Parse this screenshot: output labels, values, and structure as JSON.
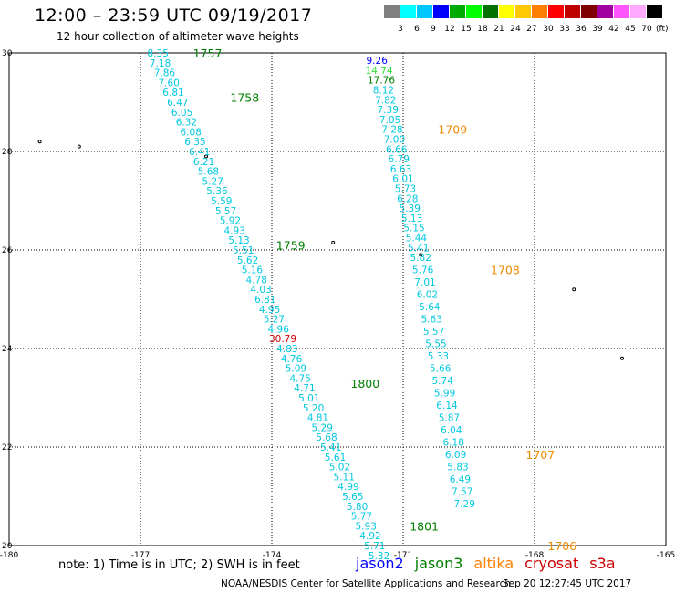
{
  "header": {
    "title": "12:00 – 23:59 UTC 09/19/2017",
    "subtitle": "12 hour collection of altimeter wave heights"
  },
  "legend": {
    "colors": [
      "#808080",
      "#00ffff",
      "#00c8ff",
      "#0000ff",
      "#00aa00",
      "#00ff00",
      "#007000",
      "#ffff00",
      "#ffc800",
      "#ff8000",
      "#ff0000",
      "#c00000",
      "#800000",
      "#a000a0",
      "#ff55ff",
      "#ffaaff",
      "#000000"
    ],
    "labels": [
      "3",
      "6",
      "9",
      "12",
      "15",
      "18",
      "21",
      "24",
      "27",
      "30",
      "33",
      "36",
      "39",
      "42",
      "45",
      "70"
    ],
    "unit": "(ft)"
  },
  "chart_data": {
    "type": "scatter",
    "xlim": [
      -180,
      -165
    ],
    "ylim": [
      20,
      30
    ],
    "x_ticks": [
      "-180",
      "-177",
      "-174",
      "-171",
      "-168",
      "-165"
    ],
    "y_ticks": [
      "30",
      "28",
      "26",
      "24",
      "22",
      "20"
    ],
    "grid": "dotted",
    "track_colors": {
      "cyan": "#00c8e0",
      "blue": "#0000ff",
      "green": "#30e030",
      "darkgreen": "#008000",
      "red": "#cc0000"
    },
    "tracks": [
      {
        "points": [
          {
            "lon": -176.6,
            "lat": 30.0,
            "v": "8.35"
          },
          {
            "lon": -176.55,
            "lat": 29.8,
            "v": "7.18"
          },
          {
            "lon": -176.45,
            "lat": 29.6,
            "v": "7.86"
          },
          {
            "lon": -176.35,
            "lat": 29.4,
            "v": "7.60"
          },
          {
            "lon": -176.25,
            "lat": 29.2,
            "v": "6.81"
          },
          {
            "lon": -176.15,
            "lat": 29.0,
            "v": "6.47"
          },
          {
            "lon": -176.05,
            "lat": 28.8,
            "v": "6.05"
          },
          {
            "lon": -175.95,
            "lat": 28.6,
            "v": "6.32"
          },
          {
            "lon": -175.85,
            "lat": 28.4,
            "v": "6.08"
          },
          {
            "lon": -175.75,
            "lat": 28.2,
            "v": "6.35"
          },
          {
            "lon": -175.65,
            "lat": 28.0,
            "v": "6.41"
          },
          {
            "lon": -175.55,
            "lat": 27.8,
            "v": "6.21"
          },
          {
            "lon": -175.45,
            "lat": 27.6,
            "v": "5.68"
          },
          {
            "lon": -175.35,
            "lat": 27.4,
            "v": "5.27"
          },
          {
            "lon": -175.25,
            "lat": 27.2,
            "v": "5.36"
          },
          {
            "lon": -175.15,
            "lat": 27.0,
            "v": "5.59"
          },
          {
            "lon": -175.05,
            "lat": 26.8,
            "v": "5.57"
          },
          {
            "lon": -174.95,
            "lat": 26.6,
            "v": "5.92"
          },
          {
            "lon": -174.85,
            "lat": 26.4,
            "v": "4.93"
          },
          {
            "lon": -174.75,
            "lat": 26.2,
            "v": "5.13"
          },
          {
            "lon": -174.65,
            "lat": 26.0,
            "v": "5.51"
          },
          {
            "lon": -174.55,
            "lat": 25.8,
            "v": "5.62"
          },
          {
            "lon": -174.45,
            "lat": 25.6,
            "v": "5.16"
          },
          {
            "lon": -174.35,
            "lat": 25.4,
            "v": "4.78"
          },
          {
            "lon": -174.25,
            "lat": 25.2,
            "v": "4.03"
          },
          {
            "lon": -174.15,
            "lat": 25.0,
            "v": "6.81"
          },
          {
            "lon": -174.05,
            "lat": 24.8,
            "v": "4.95"
          },
          {
            "lon": -173.95,
            "lat": 24.6,
            "v": "5.27"
          },
          {
            "lon": -173.85,
            "lat": 24.4,
            "v": "4.96"
          },
          {
            "lon": -173.75,
            "lat": 24.2,
            "v": "30.79",
            "c": "red"
          },
          {
            "lon": -173.65,
            "lat": 24.0,
            "v": "4.83"
          },
          {
            "lon": -173.55,
            "lat": 23.8,
            "v": "4.76"
          },
          {
            "lon": -173.45,
            "lat": 23.6,
            "v": "5.09"
          },
          {
            "lon": -173.35,
            "lat": 23.4,
            "v": "4.75"
          },
          {
            "lon": -173.25,
            "lat": 23.2,
            "v": "4.71"
          },
          {
            "lon": -173.15,
            "lat": 23.0,
            "v": "5.01"
          },
          {
            "lon": -173.05,
            "lat": 22.8,
            "v": "5.20"
          },
          {
            "lon": -172.95,
            "lat": 22.6,
            "v": "4.81"
          },
          {
            "lon": -172.85,
            "lat": 22.4,
            "v": "5.29"
          },
          {
            "lon": -172.75,
            "lat": 22.2,
            "v": "5.68"
          },
          {
            "lon": -172.65,
            "lat": 22.0,
            "v": "5.41"
          },
          {
            "lon": -172.55,
            "lat": 21.8,
            "v": "5.61"
          },
          {
            "lon": -172.45,
            "lat": 21.6,
            "v": "5.02"
          },
          {
            "lon": -172.35,
            "lat": 21.4,
            "v": "5.11"
          },
          {
            "lon": -172.25,
            "lat": 21.2,
            "v": "4.99"
          },
          {
            "lon": -172.15,
            "lat": 21.0,
            "v": "5.65"
          },
          {
            "lon": -172.05,
            "lat": 20.8,
            "v": "5.80"
          },
          {
            "lon": -171.95,
            "lat": 20.6,
            "v": "5.77"
          },
          {
            "lon": -171.85,
            "lat": 20.4,
            "v": "5.93"
          },
          {
            "lon": -171.75,
            "lat": 20.2,
            "v": "4.92"
          },
          {
            "lon": -171.65,
            "lat": 20.0,
            "v": "5.71"
          },
          {
            "lon": -171.55,
            "lat": 19.8,
            "v": "5.32"
          }
        ],
        "times": [
          {
            "lon": -175.8,
            "lat": 30.0,
            "t": "1757"
          },
          {
            "lon": -174.95,
            "lat": 29.1,
            "t": "1758"
          },
          {
            "lon": -173.9,
            "lat": 26.1,
            "t": "1759"
          },
          {
            "lon": -172.2,
            "lat": 23.3,
            "t": "1800"
          },
          {
            "lon": -170.85,
            "lat": 20.4,
            "t": "1801"
          }
        ]
      },
      {
        "points": [
          {
            "lon": -171.6,
            "lat": 29.85,
            "v": "9.26",
            "c": "blue"
          },
          {
            "lon": -171.55,
            "lat": 29.65,
            "v": "14.74",
            "c": "green"
          },
          {
            "lon": -171.5,
            "lat": 29.45,
            "v": "17.76",
            "c": "darkgreen"
          },
          {
            "lon": -171.45,
            "lat": 29.25,
            "v": "8.12"
          },
          {
            "lon": -171.4,
            "lat": 29.05,
            "v": "7.82"
          },
          {
            "lon": -171.35,
            "lat": 28.85,
            "v": "7.39"
          },
          {
            "lon": -171.3,
            "lat": 28.65,
            "v": "7.05"
          },
          {
            "lon": -171.25,
            "lat": 28.45,
            "v": "7.28"
          },
          {
            "lon": -171.2,
            "lat": 28.25,
            "v": "7.00"
          },
          {
            "lon": -171.15,
            "lat": 28.05,
            "v": "6.66"
          },
          {
            "lon": -171.1,
            "lat": 27.85,
            "v": "6.79"
          },
          {
            "lon": -171.05,
            "lat": 27.65,
            "v": "6.63"
          },
          {
            "lon": -171.0,
            "lat": 27.45,
            "v": "6.01"
          },
          {
            "lon": -170.95,
            "lat": 27.25,
            "v": "5.73"
          },
          {
            "lon": -170.9,
            "lat": 27.05,
            "v": "6.28"
          },
          {
            "lon": -170.85,
            "lat": 26.85,
            "v": "5.39"
          },
          {
            "lon": -170.8,
            "lat": 26.65,
            "v": "5.13"
          },
          {
            "lon": -170.75,
            "lat": 26.45,
            "v": "5.15"
          },
          {
            "lon": -170.7,
            "lat": 26.25,
            "v": "5.44"
          },
          {
            "lon": -170.65,
            "lat": 26.05,
            "v": "5.41"
          },
          {
            "lon": -170.6,
            "lat": 25.85,
            "v": "5.82"
          },
          {
            "lon": -170.55,
            "lat": 25.6,
            "v": "5.76"
          },
          {
            "lon": -170.5,
            "lat": 25.35,
            "v": "7.01"
          },
          {
            "lon": -170.45,
            "lat": 25.1,
            "v": "6.02"
          },
          {
            "lon": -170.4,
            "lat": 24.85,
            "v": "5.64"
          },
          {
            "lon": -170.35,
            "lat": 24.6,
            "v": "5.63"
          },
          {
            "lon": -170.3,
            "lat": 24.35,
            "v": "5.57"
          },
          {
            "lon": -170.25,
            "lat": 24.1,
            "v": "5.55"
          },
          {
            "lon": -170.2,
            "lat": 23.85,
            "v": "5.33"
          },
          {
            "lon": -170.15,
            "lat": 23.6,
            "v": "5.66"
          },
          {
            "lon": -170.1,
            "lat": 23.35,
            "v": "5.74"
          },
          {
            "lon": -170.05,
            "lat": 23.1,
            "v": "5.99"
          },
          {
            "lon": -170.0,
            "lat": 22.85,
            "v": "6.14"
          },
          {
            "lon": -169.95,
            "lat": 22.6,
            "v": "5.87"
          },
          {
            "lon": -169.9,
            "lat": 22.35,
            "v": "6.04"
          },
          {
            "lon": -169.85,
            "lat": 22.1,
            "v": "6.18"
          },
          {
            "lon": -169.8,
            "lat": 21.85,
            "v": "6.09"
          },
          {
            "lon": -169.75,
            "lat": 21.6,
            "v": "5.83"
          },
          {
            "lon": -169.7,
            "lat": 21.35,
            "v": "6.49"
          },
          {
            "lon": -169.65,
            "lat": 21.1,
            "v": "7.57"
          },
          {
            "lon": -169.6,
            "lat": 20.85,
            "v": "7.29"
          }
        ],
        "times": [
          {
            "lon": -170.2,
            "lat": 28.45,
            "t": "1709"
          },
          {
            "lon": -169.0,
            "lat": 25.6,
            "t": "1708"
          },
          {
            "lon": -168.2,
            "lat": 21.85,
            "t": "1707"
          },
          {
            "lon": -167.7,
            "lat": 20.0,
            "t": "1706"
          }
        ]
      }
    ]
  },
  "footer": {
    "note": "note: 1) Time is in UTC; 2) SWH is in feet",
    "satellites": [
      {
        "name": "jason2",
        "color": "#0000ff"
      },
      {
        "name": "jason3",
        "color": "#008000"
      },
      {
        "name": "altika",
        "color": "#ff8000"
      },
      {
        "name": "cryosat",
        "color": "#cc0000"
      },
      {
        "name": "s3a",
        "color": "#cc0000"
      }
    ],
    "credit": "NOAA/NESDIS Center for Satellite Applications and Research",
    "timestamp": "Sep 20 12:27:45 UTC 2017"
  }
}
